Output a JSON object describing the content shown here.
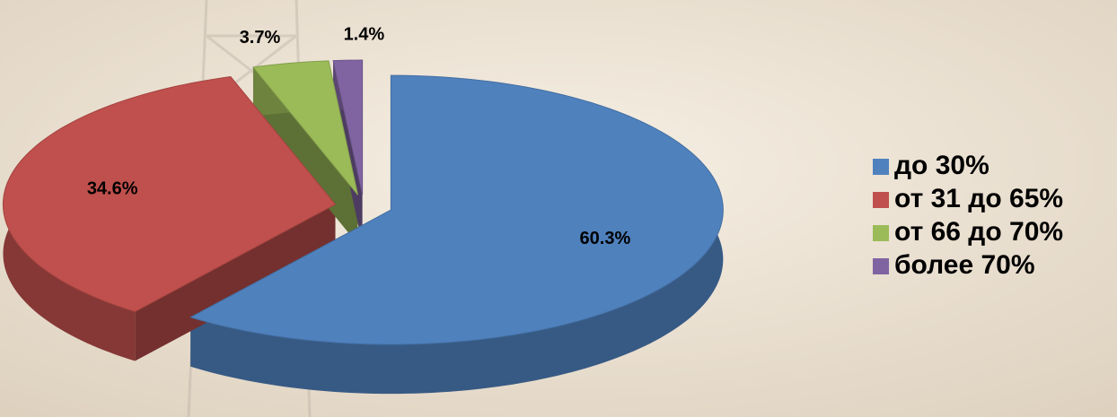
{
  "chart_data": {
    "type": "pie",
    "categories": [
      "до 30%",
      "от 31 до 65%",
      "от 66 до 70%",
      "более 70%"
    ],
    "values": [
      60.3,
      34.6,
      3.7,
      1.4
    ],
    "value_labels": [
      "60.3%",
      "34.6%",
      "3.7%",
      "1.4%"
    ],
    "colors": [
      "#4f81bd",
      "#c0504d",
      "#9bbb59",
      "#8064a2"
    ],
    "legend": "right"
  }
}
